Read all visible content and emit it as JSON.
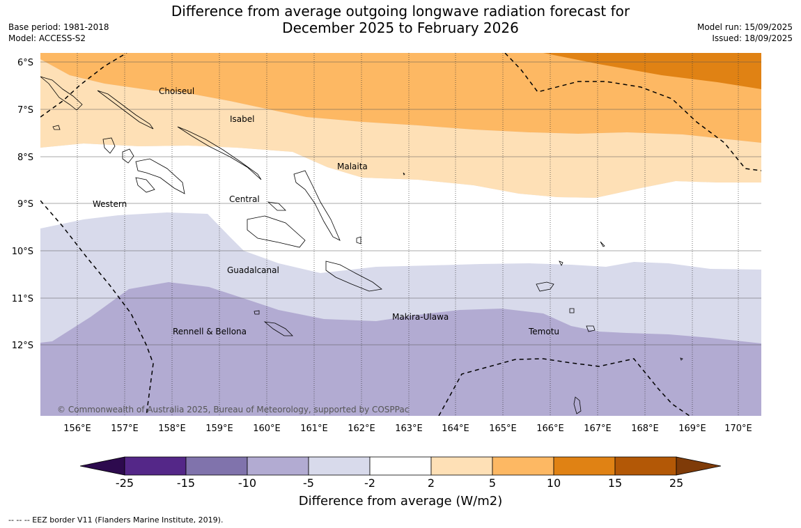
{
  "header": {
    "title_line1": "Difference from average outgoing longwave radiation forecast for",
    "title_line2": "December 2025 to February 2026",
    "base_period": "Base period: 1981-2018",
    "model": "Model: ACCESS-S2",
    "model_run": "Model run: 15/09/2025",
    "issued": "Issued: 18/09/2025"
  },
  "map": {
    "lat_labels": [
      "6°S",
      "7°S",
      "8°S",
      "9°S",
      "10°S",
      "11°S",
      "12°S"
    ],
    "lon_labels": [
      "156°E",
      "157°E",
      "158°E",
      "159°E",
      "160°E",
      "161°E",
      "162°E",
      "163°E",
      "164°E",
      "165°E",
      "166°E",
      "167°E",
      "168°E",
      "169°E",
      "170°E"
    ],
    "regions": [
      "Choiseul",
      "Isabel",
      "Malaita",
      "Western",
      "Central",
      "Guadalcanal",
      "Makira-Ulawa",
      "Rennell & Bellona",
      "Temotu"
    ],
    "copyright": "© Commonwealth of Australia 2025, Bureau of Meteorology, supported by COSPPac"
  },
  "colorbar": {
    "title": "Difference from average (W/m2)",
    "ticks": [
      "-25",
      "-15",
      "-10",
      "-5",
      "-2",
      "2",
      "5",
      "10",
      "15",
      "25"
    ],
    "colors": [
      "#2d0a4e",
      "#542788",
      "#8073ac",
      "#b2abd2",
      "#d8daeb",
      "#ffffff",
      "#fee0b6",
      "#fdb863",
      "#e08214",
      "#b35806",
      "#7f3b08"
    ]
  },
  "footnote": "--  --  -- EEZ border V11 (Flanders Marine Institute, 2019)."
}
